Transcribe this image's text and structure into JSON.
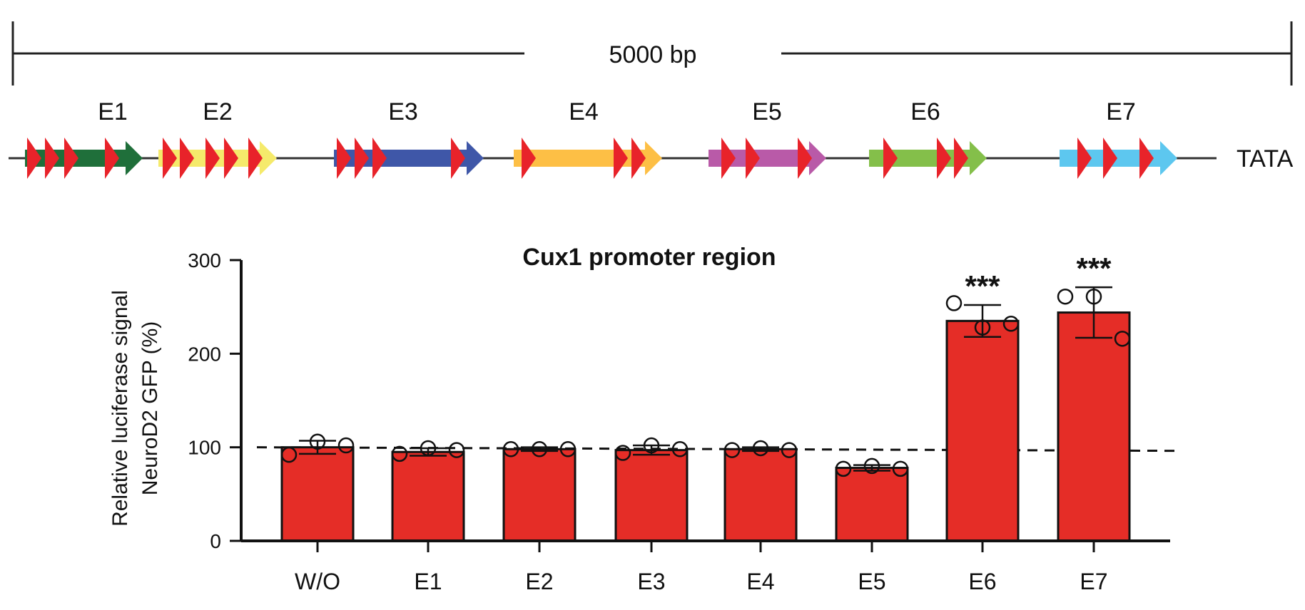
{
  "scale_bar": {
    "label": "5000 bp"
  },
  "promoter_map": {
    "elements": [
      {
        "label": "E1",
        "color": "#1f6f3a"
      },
      {
        "label": "E2",
        "color": "#f5ea6b"
      },
      {
        "label": "E3",
        "color": "#3f57a8"
      },
      {
        "label": "E4",
        "color": "#fdbf45"
      },
      {
        "label": "E5",
        "color": "#b95aa8"
      },
      {
        "label": "E6",
        "color": "#84bf4a"
      },
      {
        "label": "E7",
        "color": "#5dc7ef"
      }
    ],
    "end_label": "TATA",
    "site_color": "#e8232a"
  },
  "chart_data": {
    "type": "bar",
    "title": "Cux1 promoter region",
    "ylabel_line1": "Relative luciferase signal",
    "ylabel_line2": "NeuroD2 GFP (%)",
    "xlabel": "",
    "ylim": [
      0,
      300
    ],
    "yticks": [
      0,
      100,
      200,
      300
    ],
    "categories": [
      "W/O",
      "E1",
      "E2",
      "E3",
      "E4",
      "E5",
      "E6",
      "E7"
    ],
    "values": [
      100,
      95,
      98,
      97,
      98,
      78,
      235,
      244
    ],
    "errors": [
      7,
      4,
      2,
      5,
      2,
      3,
      17,
      27
    ],
    "points": [
      [
        92,
        106,
        102
      ],
      [
        93,
        99,
        97
      ],
      [
        98,
        98,
        98
      ],
      [
        94,
        102,
        98
      ],
      [
        97,
        99,
        97
      ],
      [
        77,
        80,
        77
      ],
      [
        254,
        228,
        232
      ],
      [
        261,
        261,
        216
      ]
    ],
    "significance": [
      "",
      "",
      "",
      "",
      "",
      "",
      "***",
      "***"
    ],
    "reference_line": 100,
    "bar_color": "#e52d27",
    "grid": false,
    "legend": "none"
  }
}
